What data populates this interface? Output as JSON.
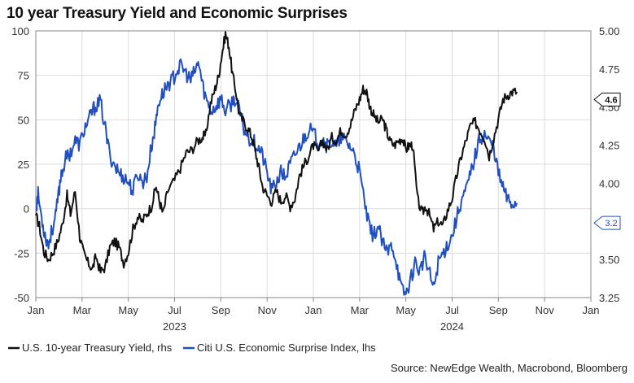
{
  "chart_data": {
    "type": "line",
    "title": "10 year Treasury Yield and Economic Surprises",
    "x_ticks": [
      "Jan",
      "Mar",
      "May",
      "Jul",
      "Sep",
      "Nov",
      "Jan",
      "Mar",
      "May",
      "Jul",
      "Sep",
      "Nov",
      "Jan"
    ],
    "year_labels": [
      "2023",
      "2024"
    ],
    "x_range": [
      "2023-01-01",
      "2025-01-01"
    ],
    "left_axis": {
      "ylim": [
        -50,
        100
      ],
      "ticks": [
        "100",
        "75",
        "50",
        "25",
        "0",
        "-25",
        "-50"
      ]
    },
    "right_axis": {
      "ylim": [
        3.25,
        5.0
      ],
      "ticks": [
        "5.00",
        "4.75",
        "4.50",
        "4.25",
        "4.00",
        "3.75",
        "3.50",
        "3.25"
      ]
    },
    "grid": true,
    "legend_position": "bottom-left",
    "series": [
      {
        "name": "U.S. 10-year Treasury Yield, rhs",
        "axis": "right",
        "color": "#111111",
        "last_value_label": "4.6",
        "points": [
          [
            0,
            3.79
          ],
          [
            0.15,
            3.72
          ],
          [
            0.35,
            3.55
          ],
          [
            0.55,
            3.5
          ],
          [
            0.75,
            3.55
          ],
          [
            0.95,
            3.62
          ],
          [
            1.15,
            3.73
          ],
          [
            1.35,
            3.92
          ],
          [
            1.5,
            3.8
          ],
          [
            1.7,
            3.95
          ],
          [
            1.9,
            3.65
          ],
          [
            2.05,
            3.55
          ],
          [
            2.25,
            3.48
          ],
          [
            2.45,
            3.44
          ],
          [
            2.6,
            3.52
          ],
          [
            2.8,
            3.42
          ],
          [
            3.0,
            3.45
          ],
          [
            3.2,
            3.58
          ],
          [
            3.4,
            3.62
          ],
          [
            3.6,
            3.58
          ],
          [
            3.8,
            3.48
          ],
          [
            4.0,
            3.55
          ],
          [
            4.2,
            3.7
          ],
          [
            4.4,
            3.78
          ],
          [
            4.6,
            3.75
          ],
          [
            4.8,
            3.8
          ],
          [
            5.0,
            3.85
          ],
          [
            5.2,
            3.98
          ],
          [
            5.35,
            3.88
          ],
          [
            5.5,
            3.8
          ],
          [
            5.7,
            3.95
          ],
          [
            6.0,
            4.02
          ],
          [
            6.25,
            4.1
          ],
          [
            6.5,
            4.2
          ],
          [
            6.75,
            4.22
          ],
          [
            7.0,
            4.28
          ],
          [
            7.2,
            4.3
          ],
          [
            7.35,
            4.32
          ],
          [
            7.55,
            4.52
          ],
          [
            7.75,
            4.62
          ],
          [
            7.9,
            4.7
          ],
          [
            8.05,
            4.85
          ],
          [
            8.2,
            4.98
          ],
          [
            8.35,
            4.9
          ],
          [
            8.5,
            4.72
          ],
          [
            8.65,
            4.6
          ],
          [
            8.8,
            4.45
          ],
          [
            9.0,
            4.4
          ],
          [
            9.2,
            4.35
          ],
          [
            9.35,
            4.3
          ],
          [
            9.5,
            4.2
          ],
          [
            9.65,
            4.1
          ],
          [
            9.8,
            3.98
          ],
          [
            10.0,
            3.92
          ],
          [
            10.2,
            3.88
          ],
          [
            10.4,
            3.95
          ],
          [
            10.6,
            3.88
          ],
          [
            10.8,
            3.92
          ],
          [
            11.0,
            3.85
          ],
          [
            11.2,
            3.9
          ],
          [
            11.4,
            4.05
          ],
          [
            11.6,
            4.12
          ],
          [
            11.8,
            4.18
          ],
          [
            12.0,
            4.25
          ],
          [
            12.2,
            4.2
          ],
          [
            12.4,
            4.28
          ],
          [
            12.6,
            4.22
          ],
          [
            12.8,
            4.3
          ],
          [
            13.0,
            4.28
          ],
          [
            13.2,
            4.35
          ],
          [
            13.4,
            4.32
          ],
          [
            13.6,
            4.38
          ],
          [
            13.8,
            4.48
          ],
          [
            14.0,
            4.55
          ],
          [
            14.15,
            4.62
          ],
          [
            14.3,
            4.6
          ],
          [
            14.45,
            4.5
          ],
          [
            14.6,
            4.45
          ],
          [
            14.8,
            4.4
          ],
          [
            15.0,
            4.42
          ],
          [
            15.15,
            4.35
          ],
          [
            15.3,
            4.28
          ],
          [
            15.5,
            4.25
          ],
          [
            15.7,
            4.28
          ],
          [
            15.85,
            4.3
          ],
          [
            16.0,
            4.22
          ],
          [
            16.15,
            4.25
          ],
          [
            16.3,
            4.25
          ],
          [
            16.5,
            3.9
          ],
          [
            16.7,
            3.8
          ],
          [
            16.85,
            3.85
          ],
          [
            17.0,
            3.8
          ],
          [
            17.2,
            3.7
          ],
          [
            17.4,
            3.75
          ],
          [
            17.6,
            3.72
          ],
          [
            17.8,
            3.82
          ],
          [
            18.0,
            3.9
          ],
          [
            18.2,
            4.05
          ],
          [
            18.4,
            4.18
          ],
          [
            18.6,
            4.28
          ],
          [
            18.8,
            4.38
          ],
          [
            19.0,
            4.4
          ],
          [
            19.2,
            4.35
          ],
          [
            19.4,
            4.3
          ],
          [
            19.6,
            4.18
          ],
          [
            19.8,
            4.3
          ],
          [
            20.0,
            4.42
          ],
          [
            20.2,
            4.55
          ],
          [
            20.4,
            4.58
          ],
          [
            20.6,
            4.6
          ],
          [
            20.8,
            4.6
          ]
        ]
      },
      {
        "name": "Citi U.S. Economic Surprise Index, lhs",
        "axis": "left",
        "color": "#1f4fc1",
        "last_value_label": "3.2",
        "points": [
          [
            0,
            0
          ],
          [
            0.1,
            8
          ],
          [
            0.25,
            -5
          ],
          [
            0.4,
            -15
          ],
          [
            0.55,
            -20
          ],
          [
            0.7,
            -12
          ],
          [
            0.85,
            -5
          ],
          [
            1.0,
            10
          ],
          [
            1.1,
            20
          ],
          [
            1.3,
            28
          ],
          [
            1.5,
            32
          ],
          [
            1.7,
            38
          ],
          [
            1.9,
            36
          ],
          [
            2.1,
            45
          ],
          [
            2.3,
            50
          ],
          [
            2.45,
            55
          ],
          [
            2.6,
            58
          ],
          [
            2.8,
            60
          ],
          [
            3.0,
            45
          ],
          [
            3.2,
            30
          ],
          [
            3.4,
            25
          ],
          [
            3.6,
            20
          ],
          [
            3.8,
            18
          ],
          [
            4.0,
            15
          ],
          [
            4.2,
            10
          ],
          [
            4.4,
            20
          ],
          [
            4.6,
            15
          ],
          [
            4.8,
            18
          ],
          [
            5.0,
            35
          ],
          [
            5.15,
            45
          ],
          [
            5.3,
            60
          ],
          [
            5.5,
            65
          ],
          [
            5.7,
            70
          ],
          [
            5.9,
            72
          ],
          [
            6.1,
            78
          ],
          [
            6.3,
            80
          ],
          [
            6.5,
            76
          ],
          [
            6.7,
            72
          ],
          [
            6.9,
            78
          ],
          [
            7.05,
            82
          ],
          [
            7.2,
            70
          ],
          [
            7.4,
            60
          ],
          [
            7.6,
            55
          ],
          [
            7.8,
            58
          ],
          [
            8.0,
            62
          ],
          [
            8.2,
            55
          ],
          [
            8.4,
            58
          ],
          [
            8.6,
            62
          ],
          [
            8.8,
            55
          ],
          [
            9.0,
            45
          ],
          [
            9.2,
            40
          ],
          [
            9.4,
            38
          ],
          [
            9.6,
            35
          ],
          [
            9.8,
            30
          ],
          [
            10.0,
            20
          ],
          [
            10.2,
            10
          ],
          [
            10.4,
            15
          ],
          [
            10.6,
            20
          ],
          [
            10.8,
            18
          ],
          [
            11.0,
            25
          ],
          [
            11.2,
            30
          ],
          [
            11.4,
            35
          ],
          [
            11.6,
            40
          ],
          [
            11.8,
            45
          ],
          [
            12.0,
            42
          ],
          [
            12.2,
            38
          ],
          [
            12.4,
            40
          ],
          [
            12.6,
            35
          ],
          [
            12.8,
            38
          ],
          [
            13.0,
            35
          ],
          [
            13.2,
            40
          ],
          [
            13.4,
            38
          ],
          [
            13.6,
            35
          ],
          [
            13.8,
            30
          ],
          [
            14.0,
            20
          ],
          [
            14.2,
            5
          ],
          [
            14.4,
            -10
          ],
          [
            14.6,
            -15
          ],
          [
            14.8,
            -10
          ],
          [
            15.0,
            -20
          ],
          [
            15.2,
            -25
          ],
          [
            15.4,
            -20
          ],
          [
            15.6,
            -30
          ],
          [
            15.8,
            -45
          ],
          [
            16.0,
            -48
          ],
          [
            16.2,
            -40
          ],
          [
            16.4,
            -30
          ],
          [
            16.6,
            -35
          ],
          [
            16.8,
            -28
          ],
          [
            17.0,
            -35
          ],
          [
            17.2,
            -45
          ],
          [
            17.4,
            -30
          ],
          [
            17.6,
            -25
          ],
          [
            17.8,
            -20
          ],
          [
            18.0,
            -15
          ],
          [
            18.2,
            -5
          ],
          [
            18.4,
            5
          ],
          [
            18.6,
            10
          ],
          [
            18.8,
            20
          ],
          [
            19.0,
            30
          ],
          [
            19.2,
            40
          ],
          [
            19.4,
            42
          ],
          [
            19.6,
            38
          ],
          [
            19.8,
            35
          ],
          [
            20.0,
            20
          ],
          [
            20.2,
            12
          ],
          [
            20.4,
            5
          ],
          [
            20.6,
            3
          ],
          [
            20.8,
            3.2
          ]
        ]
      }
    ]
  },
  "source": "Source: NewEdge Wealth, Macrobond, Bloomberg",
  "colors": {
    "yield": "#111111",
    "surprise": "#1f4fc1",
    "grid": "#dcdcdc",
    "axis": "#888888"
  }
}
